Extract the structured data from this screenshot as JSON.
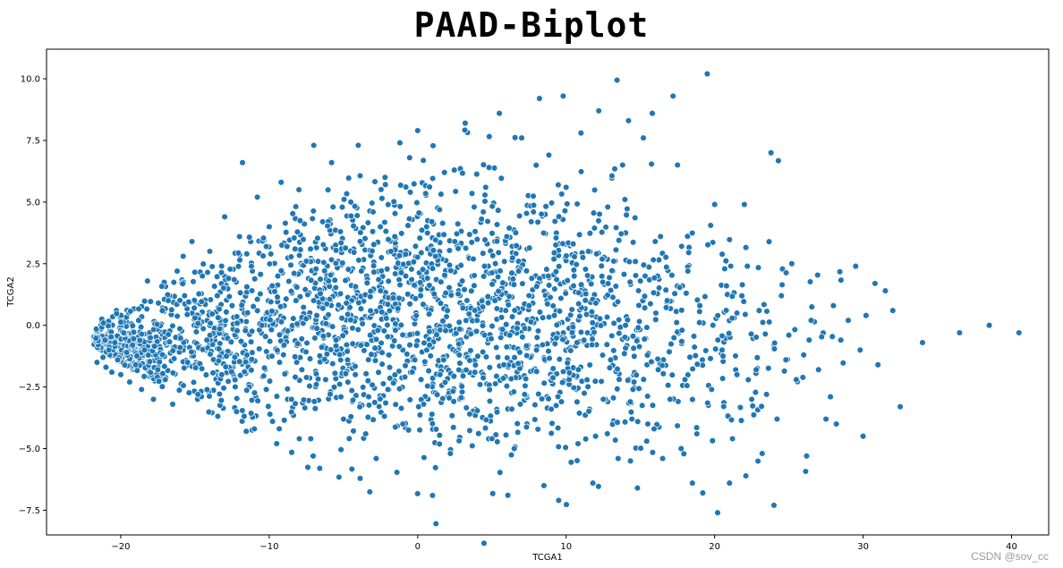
{
  "chart_data": {
    "type": "scatter",
    "title": "PAAD-Biplot",
    "xlabel": "TCGA1",
    "ylabel": "TCGA2",
    "xlim": [
      -25,
      42.5
    ],
    "ylim": [
      -8.5,
      11.2
    ],
    "xticks": [
      -20,
      -10,
      0,
      10,
      20,
      30,
      40
    ],
    "xtick_labels": [
      "−20",
      "−10",
      "0",
      "10",
      "20",
      "30",
      "40"
    ],
    "yticks": [
      -7.5,
      -5.0,
      -2.5,
      0.0,
      2.5,
      5.0,
      7.5,
      10.0
    ],
    "ytick_labels": [
      "−7.5",
      "−5.0",
      "−2.5",
      "0.0",
      "2.5",
      "5.0",
      "7.5",
      "10.0"
    ],
    "grid": false,
    "marker_color": "#1f77b4",
    "marker_edge_color": "#ffffff",
    "point_count_estimate": 2600,
    "points": [
      [
        -21.6,
        -1.5
      ],
      [
        -21.2,
        -1.3
      ],
      [
        -21.0,
        -1.7
      ],
      [
        -20.8,
        -1.0
      ],
      [
        -20.6,
        -1.9
      ],
      [
        -20.4,
        -0.7
      ],
      [
        -20.2,
        -1.4
      ],
      [
        -20.0,
        -2.0
      ],
      [
        -19.8,
        -0.3
      ],
      [
        -19.6,
        -1.1
      ],
      [
        -19.4,
        -2.3
      ],
      [
        -19.2,
        -0.8
      ],
      [
        -19.0,
        -1.6
      ],
      [
        -18.8,
        0.2
      ],
      [
        -18.6,
        -2.6
      ],
      [
        -18.4,
        -1.0
      ],
      [
        -18.2,
        1.8
      ],
      [
        -18.0,
        -0.5
      ],
      [
        -17.8,
        -3.0
      ],
      [
        -17.5,
        -1.8
      ],
      [
        -17.2,
        0.6
      ],
      [
        -17.0,
        -2.2
      ],
      [
        -16.8,
        1.0
      ],
      [
        -16.5,
        -3.2
      ],
      [
        -16.2,
        2.2
      ],
      [
        -16.0,
        -0.9
      ],
      [
        -15.8,
        2.8
      ],
      [
        -15.5,
        -1.5
      ],
      [
        -15.2,
        3.4
      ],
      [
        -15.0,
        0.3
      ],
      [
        -14.8,
        -2.8
      ],
      [
        -14.5,
        2.0
      ],
      [
        -14.2,
        -0.6
      ],
      [
        -14.0,
        3.0
      ],
      [
        -13.5,
        1.2
      ],
      [
        -13.2,
        -2.0
      ],
      [
        -13.0,
        4.4
      ],
      [
        -12.5,
        0.8
      ],
      [
        -12.2,
        -3.5
      ],
      [
        -12.0,
        3.6
      ],
      [
        -11.8,
        6.6
      ],
      [
        -11.5,
        -1.2
      ],
      [
        -11.2,
        2.4
      ],
      [
        -11.0,
        -4.2
      ],
      [
        -10.8,
        5.2
      ],
      [
        -10.5,
        0.0
      ],
      [
        -10.2,
        -2.6
      ],
      [
        -10.0,
        4.0
      ],
      [
        -9.8,
        1.6
      ],
      [
        -9.5,
        -4.8
      ],
      [
        -9.2,
        5.8
      ],
      [
        -9.0,
        -0.8
      ],
      [
        -8.8,
        3.2
      ],
      [
        -8.5,
        -3.0
      ],
      [
        -8.2,
        1.0
      ],
      [
        -8.0,
        5.5
      ],
      [
        -7.8,
        -1.8
      ],
      [
        -7.5,
        2.6
      ],
      [
        -7.2,
        -4.6
      ],
      [
        -7.0,
        7.3
      ],
      [
        -6.8,
        0.4
      ],
      [
        -6.6,
        -5.8
      ],
      [
        -6.4,
        4.2
      ],
      [
        -6.2,
        -2.2
      ],
      [
        -6.0,
        1.8
      ],
      [
        -5.8,
        6.6
      ],
      [
        -5.5,
        -0.6
      ],
      [
        -5.2,
        3.8
      ],
      [
        -5.0,
        -3.8
      ],
      [
        -4.8,
        0.9
      ],
      [
        -4.5,
        5.0
      ],
      [
        -4.2,
        -2.0
      ],
      [
        -4.0,
        7.3
      ],
      [
        -3.8,
        2.2
      ],
      [
        -3.5,
        -4.4
      ],
      [
        -3.2,
        -0.4
      ],
      [
        -3.0,
        4.6
      ],
      [
        -2.8,
        -5.4
      ],
      [
        -2.5,
        1.4
      ],
      [
        -2.2,
        6.0
      ],
      [
        -2.0,
        -2.6
      ],
      [
        -1.8,
        3.0
      ],
      [
        -1.5,
        -0.2
      ],
      [
        -1.2,
        7.4
      ],
      [
        -1.0,
        -4.0
      ],
      [
        -0.8,
        2.0
      ],
      [
        -0.5,
        5.4
      ],
      [
        -0.2,
        -1.4
      ],
      [
        0.0,
        7.9
      ],
      [
        0.2,
        1.2
      ],
      [
        0.4,
        -3.2
      ],
      [
        0.6,
        4.0
      ],
      [
        0.8,
        -0.8
      ],
      [
        1.0,
        -6.9
      ],
      [
        1.2,
        2.8
      ],
      [
        1.5,
        -2.0
      ],
      [
        1.8,
        6.2
      ],
      [
        2.0,
        0.6
      ],
      [
        2.2,
        -5.2
      ],
      [
        2.5,
        3.4
      ],
      [
        2.8,
        -1.2
      ],
      [
        3.0,
        1.8
      ],
      [
        3.2,
        8.2
      ],
      [
        3.5,
        -3.6
      ],
      [
        3.8,
        4.8
      ],
      [
        4.0,
        0.2
      ],
      [
        4.2,
        -2.4
      ],
      [
        4.5,
        2.4
      ],
      [
        4.8,
        6.4
      ],
      [
        5.0,
        -4.6
      ],
      [
        5.2,
        1.0
      ],
      [
        5.5,
        8.6
      ],
      [
        5.8,
        -1.6
      ],
      [
        6.0,
        3.6
      ],
      [
        6.2,
        -0.4
      ],
      [
        6.5,
        -5.0
      ],
      [
        6.8,
        2.2
      ],
      [
        7.0,
        7.6
      ],
      [
        7.2,
        -2.8
      ],
      [
        7.5,
        0.8
      ],
      [
        7.8,
        4.6
      ],
      [
        8.0,
        -1.0
      ],
      [
        8.2,
        9.2
      ],
      [
        8.5,
        -6.5
      ],
      [
        8.8,
        2.0
      ],
      [
        9.0,
        -3.4
      ],
      [
        9.2,
        0.4
      ],
      [
        9.5,
        -7.1
      ],
      [
        9.8,
        9.3
      ],
      [
        10.0,
        5.6
      ],
      [
        10.2,
        -2.2
      ],
      [
        10.5,
        1.6
      ],
      [
        10.8,
        -4.8
      ],
      [
        11.0,
        7.8
      ],
      [
        11.2,
        -0.6
      ],
      [
        11.5,
        3.0
      ],
      [
        11.8,
        -6.4
      ],
      [
        12.0,
        0.9
      ],
      [
        12.2,
        8.7
      ],
      [
        12.5,
        -3.0
      ],
      [
        12.8,
        4.8
      ],
      [
        13.0,
        -1.4
      ],
      [
        13.2,
        2.6
      ],
      [
        13.5,
        -5.4
      ],
      [
        13.8,
        6.5
      ],
      [
        14.0,
        0.0
      ],
      [
        14.2,
        8.3
      ],
      [
        14.5,
        -2.6
      ],
      [
        14.8,
        -6.6
      ],
      [
        15.0,
        1.8
      ],
      [
        15.2,
        7.6
      ],
      [
        15.5,
        -4.0
      ],
      [
        15.8,
        8.6
      ],
      [
        16.0,
        3.4
      ],
      [
        16.2,
        -1.8
      ],
      [
        16.5,
        -5.4
      ],
      [
        16.8,
        1.0
      ],
      [
        17.0,
        -3.0
      ],
      [
        17.2,
        9.3
      ],
      [
        17.5,
        6.5
      ],
      [
        17.8,
        -0.2
      ],
      [
        18.0,
        -2.2
      ],
      [
        18.2,
        2.2
      ],
      [
        18.5,
        -6.4
      ],
      [
        18.8,
        -4.4
      ],
      [
        19.0,
        0.8
      ],
      [
        19.2,
        -6.8
      ],
      [
        19.5,
        10.2
      ],
      [
        19.8,
        -2.6
      ],
      [
        20.0,
        4.9
      ],
      [
        20.2,
        -7.6
      ],
      [
        20.5,
        -1.0
      ],
      [
        20.8,
        1.6
      ],
      [
        21.0,
        -6.4
      ],
      [
        21.2,
        -4.6
      ],
      [
        21.5,
        -2.0
      ],
      [
        22.0,
        4.9
      ],
      [
        22.2,
        2.4
      ],
      [
        22.5,
        -3.0
      ],
      [
        22.8,
        -1.8
      ],
      [
        23.0,
        0.6
      ],
      [
        23.2,
        -5.2
      ],
      [
        23.5,
        -2.8
      ],
      [
        23.8,
        7.0
      ],
      [
        24.0,
        -7.3
      ],
      [
        24.2,
        -3.8
      ],
      [
        24.5,
        1.2
      ],
      [
        24.8,
        -1.4
      ],
      [
        25.0,
        -0.4
      ],
      [
        25.2,
        2.5
      ],
      [
        25.5,
        -2.2
      ],
      [
        26.0,
        -1.2
      ],
      [
        26.2,
        -5.3
      ],
      [
        26.5,
        0.2
      ],
      [
        27.0,
        -1.8
      ],
      [
        27.5,
        -3.8
      ],
      [
        27.8,
        -2.9
      ],
      [
        28.0,
        0.8
      ],
      [
        28.2,
        -4.0
      ],
      [
        28.5,
        -0.6
      ],
      [
        29.0,
        0.2
      ],
      [
        29.5,
        2.4
      ],
      [
        29.8,
        -1.0
      ],
      [
        30.0,
        -4.5
      ],
      [
        30.2,
        0.4
      ],
      [
        30.8,
        1.7
      ],
      [
        31.0,
        -1.6
      ],
      [
        31.5,
        1.4
      ],
      [
        32.0,
        0.6
      ],
      [
        32.5,
        -3.3
      ],
      [
        34.0,
        -0.7
      ],
      [
        36.5,
        -0.3
      ],
      [
        38.5,
        0.0
      ],
      [
        40.5,
        -0.3
      ]
    ],
    "dense_clusters": [
      {
        "cx": -19.5,
        "cy": -1.2,
        "sx": 1.4,
        "sy": 0.8,
        "n": 380
      },
      {
        "cx": -14.0,
        "cy": -0.5,
        "sx": 3.0,
        "sy": 1.8,
        "n": 340
      },
      {
        "cx": -6.0,
        "cy": 0.6,
        "sx": 4.2,
        "sy": 2.6,
        "n": 520
      },
      {
        "cx": 2.0,
        "cy": 0.6,
        "sx": 4.5,
        "sy": 2.8,
        "n": 560
      },
      {
        "cx": 9.5,
        "cy": 0.0,
        "sx": 4.5,
        "sy": 2.6,
        "n": 460
      },
      {
        "cx": 18.0,
        "cy": -0.6,
        "sx": 4.5,
        "sy": 2.2,
        "n": 200
      }
    ]
  },
  "watermark": "CSDN @sov_cc"
}
